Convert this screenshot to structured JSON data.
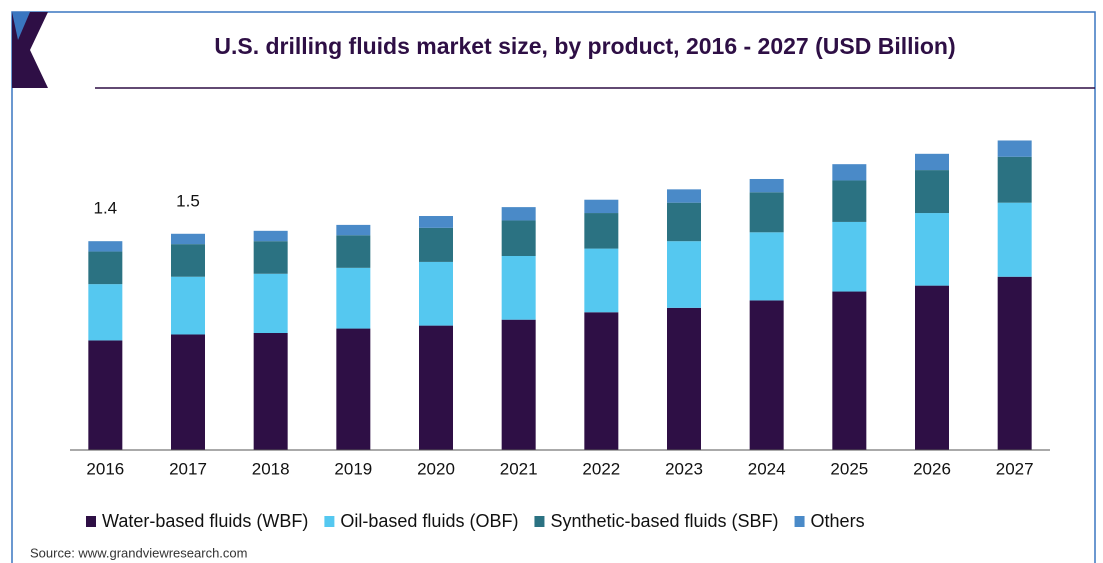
{
  "chart_data": {
    "type": "stacked_bar",
    "title": "U.S. drilling fluids market size, by product, 2016 - 2027 (USD Billion)",
    "categories": [
      "2016",
      "2017",
      "2018",
      "2019",
      "2020",
      "2021",
      "2022",
      "2023",
      "2024",
      "2025",
      "2026",
      "2027"
    ],
    "series": [
      {
        "name": "Water-based fluids (WBF)",
        "color": "#2e0f45",
        "values": [
          0.74,
          0.78,
          0.79,
          0.82,
          0.84,
          0.88,
          0.93,
          0.96,
          1.01,
          1.07,
          1.11,
          1.17
        ]
      },
      {
        "name": "Oil-based fluids (OBF)",
        "color": "#55c8f0",
        "values": [
          0.38,
          0.39,
          0.4,
          0.41,
          0.43,
          0.43,
          0.43,
          0.45,
          0.46,
          0.47,
          0.49,
          0.5
        ]
      },
      {
        "name": "Synthetic-based fluids (SBF)",
        "color": "#2b7282",
        "values": [
          0.22,
          0.22,
          0.22,
          0.22,
          0.23,
          0.24,
          0.24,
          0.26,
          0.27,
          0.28,
          0.29,
          0.31
        ]
      },
      {
        "name": "Others",
        "color": "#4a8ac8",
        "values": [
          0.07,
          0.07,
          0.07,
          0.07,
          0.08,
          0.09,
          0.09,
          0.09,
          0.09,
          0.11,
          0.11,
          0.11
        ]
      }
    ],
    "annotations": [
      "1.4",
      "1.5"
    ],
    "ylim": [
      0,
      2.1
    ],
    "source": "Source: www.grandviewresearch.com"
  }
}
